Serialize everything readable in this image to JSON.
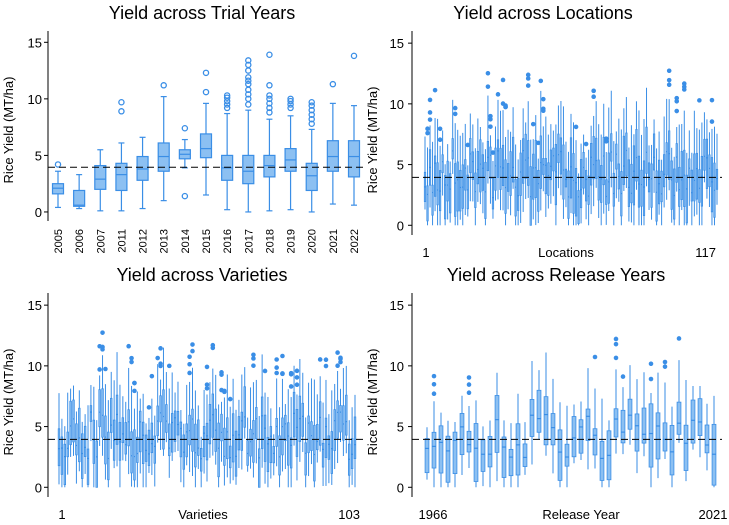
{
  "colors": {
    "box": "#3a8ee6",
    "box_fill": "#8cc0f2",
    "ref_line": "#000000",
    "axis": "#000000"
  },
  "chart_data": [
    {
      "id": "trial-years",
      "type": "boxplot",
      "title": "Yield across Trial Years",
      "xlabel": "",
      "ylabel": "Rice Yield (MT/ha)",
      "ylim": [
        -0.8,
        16
      ],
      "yticks": [
        0,
        5,
        10,
        15
      ],
      "reference_line": 3.95,
      "categories": [
        "2005",
        "2006",
        "2007",
        "2011",
        "2012",
        "2013",
        "2014",
        "2015",
        "2016",
        "2017",
        "2018",
        "2019",
        "2020",
        "2021",
        "2022"
      ],
      "boxes": [
        {
          "wlo": 0.4,
          "q1": 1.6,
          "med": 2.1,
          "q3": 2.5,
          "whi": 3.6,
          "out": [
            4.2
          ]
        },
        {
          "wlo": 0.3,
          "q1": 0.5,
          "med": 0.6,
          "q3": 1.9,
          "whi": 3.3,
          "out": []
        },
        {
          "wlo": 0.1,
          "q1": 2.0,
          "med": 2.9,
          "q3": 4.1,
          "whi": 5.5,
          "out": []
        },
        {
          "wlo": 0.1,
          "q1": 1.9,
          "med": 3.3,
          "q3": 4.3,
          "whi": 6.1,
          "out": [
            8.9,
            9.7
          ]
        },
        {
          "wlo": 0.3,
          "q1": 2.8,
          "med": 3.8,
          "q3": 4.9,
          "whi": 6.6,
          "out": []
        },
        {
          "wlo": 1.0,
          "q1": 3.6,
          "med": 4.9,
          "q3": 6.1,
          "whi": 10.2,
          "out": [
            11.2
          ]
        },
        {
          "wlo": 3.9,
          "q1": 4.7,
          "med": 5.1,
          "q3": 5.5,
          "whi": 6.4,
          "out": [
            1.4,
            7.4
          ]
        },
        {
          "wlo": 1.5,
          "q1": 4.8,
          "med": 5.6,
          "q3": 6.9,
          "whi": 9.6,
          "out": [
            10.6,
            12.3
          ]
        },
        {
          "wlo": 0.2,
          "q1": 2.8,
          "med": 3.9,
          "q3": 5.0,
          "whi": 8.7,
          "out": [
            9.2,
            9.5,
            9.8,
            10.1,
            10.3
          ]
        },
        {
          "wlo": 0.0,
          "q1": 2.5,
          "med": 3.6,
          "q3": 5.0,
          "whi": 9.0,
          "out": [
            9.5,
            10.0,
            10.4,
            10.8,
            11.3,
            11.6,
            11.9,
            12.5,
            13.0,
            13.4
          ]
        },
        {
          "wlo": 0.1,
          "q1": 3.1,
          "med": 4.1,
          "q3": 5.0,
          "whi": 8.2,
          "out": [
            8.8,
            9.2,
            9.6,
            10.0,
            10.3,
            11.2,
            13.9
          ]
        },
        {
          "wlo": 0.2,
          "q1": 3.6,
          "med": 4.6,
          "q3": 5.6,
          "whi": 8.5,
          "out": [
            9.2,
            9.5,
            9.8,
            10.0
          ]
        },
        {
          "wlo": 0.0,
          "q1": 1.9,
          "med": 3.2,
          "q3": 4.3,
          "whi": 7.3,
          "out": [
            7.8,
            8.2,
            8.6,
            9.0,
            9.4,
            9.7
          ]
        },
        {
          "wlo": 0.7,
          "q1": 3.6,
          "med": 4.9,
          "q3": 6.3,
          "whi": 9.6,
          "out": [
            11.3
          ]
        },
        {
          "wlo": 0.6,
          "q1": 3.1,
          "med": 4.9,
          "q3": 6.3,
          "whi": 9.4,
          "out": [
            13.8
          ]
        }
      ]
    },
    {
      "id": "locations",
      "type": "boxplot",
      "title": "Yield across Locations",
      "xlabel": "Locations",
      "ylabel": "Rice Yield (MT/ha)",
      "ylim": [
        -0.8,
        16
      ],
      "yticks": [
        0,
        5,
        10,
        15
      ],
      "reference_line": 3.95,
      "x_start_label": "1",
      "x_end_label": "117",
      "n": 117,
      "seed": 11
    },
    {
      "id": "varieties",
      "type": "boxplot",
      "title": "Yield across Varieties",
      "xlabel": "Varieties",
      "ylabel": "Rice Yield (MT/ha)",
      "ylim": [
        -0.8,
        16
      ],
      "yticks": [
        0,
        5,
        10,
        15
      ],
      "reference_line": 3.95,
      "x_start_label": "1",
      "x_end_label": "103",
      "n": 103,
      "seed": 23
    },
    {
      "id": "release-years",
      "type": "boxplot",
      "title": "Yield across Release Years",
      "xlabel": "Release Year",
      "ylabel": "Rice Yield (MT/ha)",
      "ylim": [
        -0.8,
        16
      ],
      "yticks": [
        0,
        5,
        10,
        15
      ],
      "reference_line": 3.95,
      "x_start_label": "1966",
      "x_end_label": "2021",
      "n": 42,
      "seed": 37
    }
  ]
}
